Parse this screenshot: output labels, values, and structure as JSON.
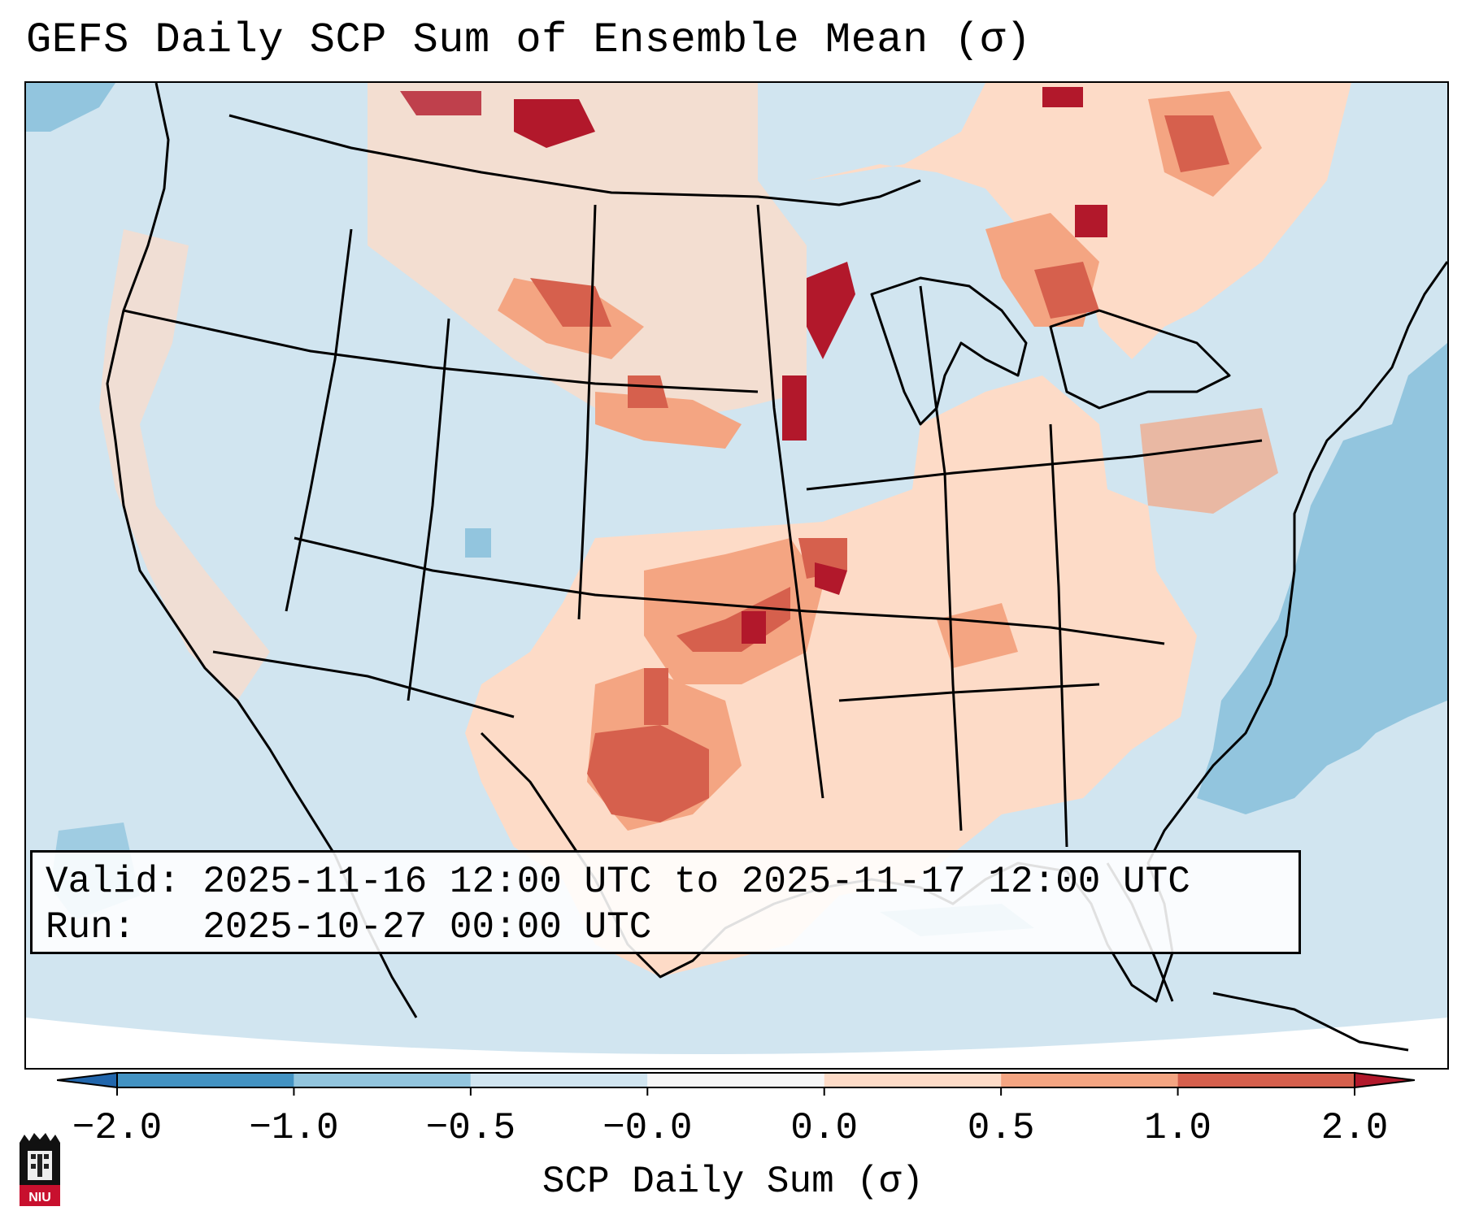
{
  "title": "GEFS Daily SCP Sum of Ensemble Mean (σ)",
  "info": {
    "valid_line": "Valid: 2025-11-16 12:00 UTC to 2025-11-17 12:00 UTC",
    "run_line": "Run:   2025-10-27 00:00 UTC"
  },
  "colorbar": {
    "label": "SCP Daily Sum (σ)",
    "ticks": [
      "−2.0",
      "−1.0",
      "−0.5",
      "−0.0",
      "0.0",
      "0.5",
      "1.0",
      "2.0"
    ],
    "bins": [
      {
        "range": "< -2.0",
        "color": "#2166ac"
      },
      {
        "range": "-2.0 to -1.0",
        "color": "#4393c3"
      },
      {
        "range": "-1.0 to -0.5",
        "color": "#92c5de"
      },
      {
        "range": "-0.5 to -0.0",
        "color": "#d1e5f0"
      },
      {
        "range": "-0.0 to 0.0",
        "color": "#f7f7f7"
      },
      {
        "range": "0.0 to 0.5",
        "color": "#fddbc7"
      },
      {
        "range": "0.5 to 1.0",
        "color": "#f4a582"
      },
      {
        "range": "1.0 to 2.0",
        "color": "#d6604d"
      },
      {
        "range": "> 2.0",
        "color": "#b2182b"
      }
    ]
  },
  "map": {
    "region": "Continental United States",
    "background_color": "#d1e5f0",
    "colors": {
      "light_positive": "#fddbc7",
      "medium_positive": "#f4a582",
      "strong_positive": "#d6604d",
      "extreme_positive": "#b2182b",
      "negative": "#92c5de"
    },
    "anomaly_regions": [
      {
        "name": "southern-plains-texas",
        "level": "strong_positive"
      },
      {
        "name": "kansas-missouri",
        "level": "strong_positive"
      },
      {
        "name": "upper-midwest-minnesota",
        "level": "extreme_positive"
      },
      {
        "name": "northern-plains-dakotas",
        "level": "strong_positive"
      },
      {
        "name": "ohio-valley",
        "level": "light_positive"
      },
      {
        "name": "southeast-gulf-coast",
        "level": "light_positive"
      },
      {
        "name": "west-coast-scattered",
        "level": "light_positive"
      },
      {
        "name": "atlantic-offshore",
        "level": "negative"
      }
    ]
  },
  "logo": {
    "text": "NIU"
  }
}
